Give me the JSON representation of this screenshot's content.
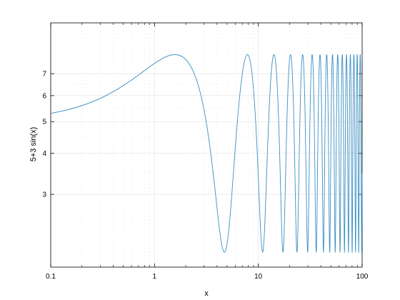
{
  "chart_data": {
    "type": "line",
    "xlabel": "x",
    "ylabel": "5+3 sin(x)",
    "x_scale": "log",
    "y_scale": "log",
    "xlim": [
      0.1,
      100
    ],
    "ylim": [
      1.8,
      10
    ],
    "grid": true,
    "x_ticks": [
      {
        "value": 0.1,
        "label": "0.1"
      },
      {
        "value": 1,
        "label": "1"
      },
      {
        "value": 10,
        "label": "10"
      },
      {
        "value": 100,
        "label": "100"
      }
    ],
    "y_ticks": [
      {
        "value": 3,
        "label": "3"
      },
      {
        "value": 4,
        "label": "4"
      },
      {
        "value": 5,
        "label": "5"
      },
      {
        "value": 6,
        "label": "6"
      },
      {
        "value": 7,
        "label": "7"
      }
    ],
    "series": [
      {
        "function": "5+3 sin(x)",
        "color": "#3a8fc2"
      }
    ]
  }
}
